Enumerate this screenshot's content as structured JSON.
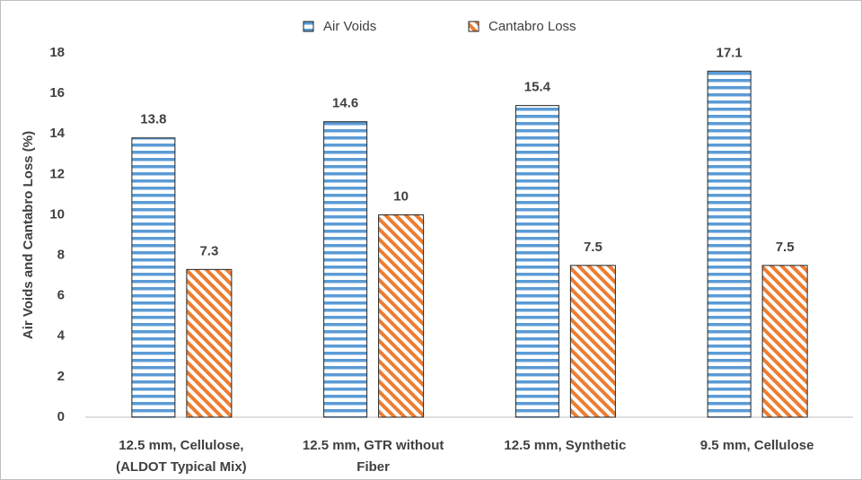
{
  "chart_data": {
    "type": "bar",
    "y_label": "Air Voids and Cantabro Loss (%)",
    "categories": [
      [
        "12.5 mm, Cellulose,",
        "(ALDOT Typical Mix)"
      ],
      [
        "12.5 mm, GTR without",
        "Fiber"
      ],
      [
        "12.5 mm, Synthetic"
      ],
      [
        "9.5 mm, Cellulose"
      ]
    ],
    "series": [
      {
        "name": "Air Voids",
        "color": "#5b9bd5",
        "pattern": "horizontal",
        "values": [
          13.8,
          14.6,
          15.4,
          17.1
        ]
      },
      {
        "name": "Cantabro Loss",
        "color": "#ed7d31",
        "pattern": "diagonal",
        "values": [
          7.3,
          10,
          7.5,
          7.5
        ]
      }
    ],
    "ylim": [
      0,
      18
    ],
    "yticks": [
      0,
      2,
      4,
      6,
      8,
      10,
      12,
      14,
      16,
      18
    ],
    "grid": false,
    "legend": "top"
  }
}
